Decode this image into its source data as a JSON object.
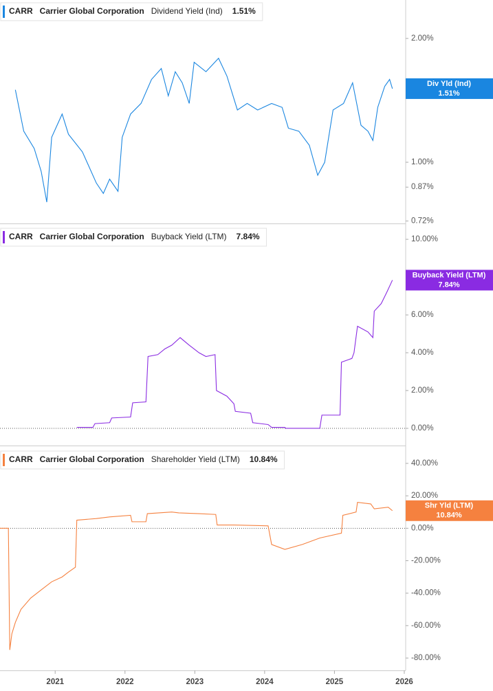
{
  "chart_data": [
    {
      "type": "line",
      "ticker": "CARR",
      "title": "Carrier Global Corporation",
      "metric": "Dividend Yield (Ind)",
      "last_value_label": "1.51%",
      "badge_label": "Div Yld (Ind)",
      "log_scale": true,
      "x": [
        2020.43,
        2020.55,
        2020.7,
        2020.8,
        2020.88,
        2020.95,
        2021.1,
        2021.19,
        2021.39,
        2021.59,
        2021.69,
        2021.78,
        2021.9,
        2021.96,
        2022.08,
        2022.23,
        2022.38,
        2022.52,
        2022.62,
        2022.72,
        2022.82,
        2022.92,
        2022.99,
        2023.16,
        2023.34,
        2023.46,
        2023.61,
        2023.75,
        2023.9,
        2024.1,
        2024.25,
        2024.34,
        2024.49,
        2024.64,
        2024.76,
        2024.86,
        2024.98,
        2025.13,
        2025.26,
        2025.38,
        2025.48,
        2025.55,
        2025.62,
        2025.72,
        2025.79,
        2025.83
      ],
      "series": [
        {
          "name": "Dividend Yield (Ind)",
          "color": "#1a86e0",
          "values": [
            1.5,
            1.19,
            1.08,
            0.95,
            0.8,
            1.15,
            1.31,
            1.17,
            1.06,
            0.89,
            0.84,
            0.91,
            0.85,
            1.15,
            1.31,
            1.39,
            1.59,
            1.69,
            1.45,
            1.66,
            1.56,
            1.39,
            1.75,
            1.66,
            1.79,
            1.62,
            1.34,
            1.39,
            1.34,
            1.39,
            1.36,
            1.21,
            1.19,
            1.1,
            0.93,
            1.0,
            1.34,
            1.39,
            1.56,
            1.23,
            1.19,
            1.13,
            1.36,
            1.53,
            1.59,
            1.51
          ]
        }
      ],
      "xlim": [
        2020.21,
        2026.02
      ],
      "ylim": [
        0.71,
        2.48
      ],
      "yticks": [
        {
          "value": 2,
          "label": "2.00%"
        },
        {
          "value": 1,
          "label": "1.00%"
        },
        {
          "value": 0.87,
          "label": "0.87%"
        },
        {
          "value": 0.72,
          "label": "0.72%"
        }
      ]
    },
    {
      "type": "line",
      "ticker": "CARR",
      "title": "Carrier Global Corporation",
      "metric": "Buyback Yield (LTM)",
      "last_value_label": "7.84%",
      "badge_label": "Buyback Yield (LTM)",
      "zero_line": true,
      "x": [
        2021.31,
        2021.54,
        2021.57,
        2021.78,
        2021.81,
        2022.08,
        2022.11,
        2022.3,
        2022.33,
        2022.47,
        2022.57,
        2022.67,
        2022.79,
        2022.92,
        2023.06,
        2023.16,
        2023.29,
        2023.31,
        2023.46,
        2023.56,
        2023.58,
        2023.8,
        2023.83,
        2024.05,
        2024.1,
        2024.29,
        2024.3,
        2024.79,
        2024.82,
        2025.08,
        2025.1,
        2025.25,
        2025.28,
        2025.33,
        2025.48,
        2025.55,
        2025.57,
        2025.67,
        2025.75,
        2025.8,
        2025.83
      ],
      "series": [
        {
          "name": "Buyback Yield (LTM)",
          "color": "#8a2be2",
          "values": [
            0.05,
            0.05,
            0.25,
            0.3,
            0.55,
            0.6,
            1.35,
            1.4,
            3.8,
            3.9,
            4.2,
            4.4,
            4.8,
            4.4,
            4.0,
            3.8,
            3.9,
            2.0,
            1.7,
            1.3,
            0.9,
            0.8,
            0.3,
            0.2,
            0.05,
            0.05,
            0.0,
            0.0,
            0.7,
            0.7,
            3.5,
            3.7,
            4.0,
            5.4,
            5.1,
            4.8,
            6.2,
            6.6,
            7.2,
            7.6,
            7.84
          ]
        }
      ],
      "xlim": [
        2020.21,
        2026.02
      ],
      "ylim": [
        -0.91,
        10.73
      ],
      "yticks": [
        {
          "value": 10,
          "label": "10.00%"
        },
        {
          "value": 6,
          "label": "6.00%"
        },
        {
          "value": 4,
          "label": "4.00%"
        },
        {
          "value": 2,
          "label": "2.00%"
        },
        {
          "value": 0,
          "label": "0.00%"
        }
      ]
    },
    {
      "type": "line",
      "ticker": "CARR",
      "title": "Carrier Global Corporation",
      "metric": "Shareholder Yield (LTM)",
      "last_value_label": "10.84%",
      "badge_label": "Shr Yld (LTM)",
      "zero_line": true,
      "x": [
        2020.21,
        2020.33,
        2020.35,
        2020.38,
        2020.43,
        2020.51,
        2020.65,
        2020.8,
        2020.95,
        2021.1,
        2021.19,
        2021.29,
        2021.31,
        2021.59,
        2021.78,
        2022.08,
        2022.1,
        2022.3,
        2022.32,
        2022.67,
        2022.77,
        2023.06,
        2023.3,
        2023.32,
        2023.56,
        2024.05,
        2024.1,
        2024.29,
        2024.54,
        2024.79,
        2025.1,
        2025.12,
        2025.31,
        2025.33,
        2025.52,
        2025.57,
        2025.77,
        2025.83
      ],
      "series": [
        {
          "name": "Shareholder Yield (LTM)",
          "color": "#f5813f",
          "values": [
            0,
            0,
            -75,
            -65,
            -58,
            -50,
            -43,
            -38,
            -33,
            -30,
            -27,
            -24,
            5,
            6,
            7,
            8,
            4,
            4,
            9,
            10,
            9.5,
            9,
            8.5,
            2,
            2,
            1.5,
            -10,
            -13,
            -10,
            -6,
            -3,
            8,
            10,
            16,
            15,
            12,
            13,
            10.84
          ]
        }
      ],
      "xlim": [
        2020.21,
        2026.02
      ],
      "ylim": [
        -87.6,
        49.3
      ],
      "yticks": [
        {
          "value": 40,
          "label": "40.00%"
        },
        {
          "value": 20,
          "label": "20.00%"
        },
        {
          "value": 0,
          "label": "0.00%"
        },
        {
          "value": -20,
          "label": "-20.00%"
        },
        {
          "value": -40,
          "label": "-40.00%"
        },
        {
          "value": -60,
          "label": "-60.00%"
        },
        {
          "value": -80,
          "label": "-80.00%"
        }
      ],
      "xticks": [
        2021,
        2022,
        2023,
        2024,
        2025,
        2026
      ]
    }
  ]
}
